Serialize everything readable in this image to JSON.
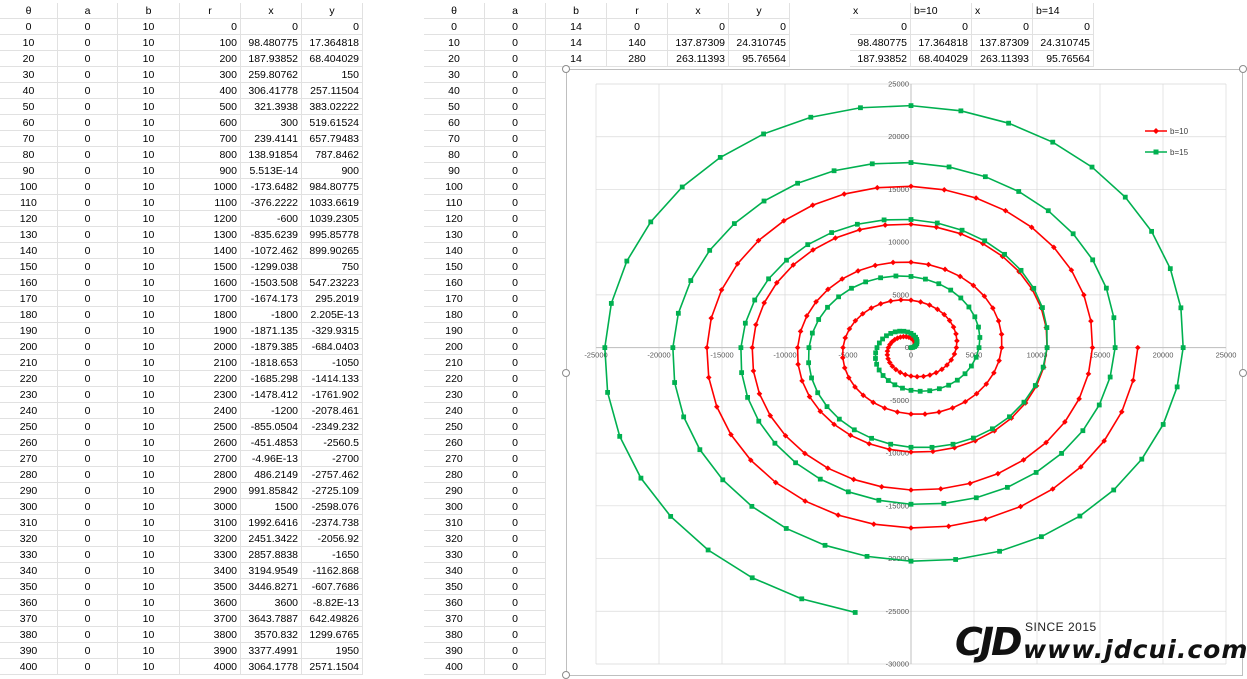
{
  "table1": {
    "headers": [
      "θ",
      "a",
      "b",
      "r",
      "x",
      "y"
    ],
    "rows": [
      [
        "0",
        "0",
        "10",
        "0",
        "0",
        "0"
      ],
      [
        "10",
        "0",
        "10",
        "100",
        "98.480775",
        "17.364818"
      ],
      [
        "20",
        "0",
        "10",
        "200",
        "187.93852",
        "68.404029"
      ],
      [
        "30",
        "0",
        "10",
        "300",
        "259.80762",
        "150"
      ],
      [
        "40",
        "0",
        "10",
        "400",
        "306.41778",
        "257.11504"
      ],
      [
        "50",
        "0",
        "10",
        "500",
        "321.3938",
        "383.02222"
      ],
      [
        "60",
        "0",
        "10",
        "600",
        "300",
        "519.61524"
      ],
      [
        "70",
        "0",
        "10",
        "700",
        "239.4141",
        "657.79483"
      ],
      [
        "80",
        "0",
        "10",
        "800",
        "138.91854",
        "787.8462"
      ],
      [
        "90",
        "0",
        "10",
        "900",
        "5.513E-14",
        "900"
      ],
      [
        "100",
        "0",
        "10",
        "1000",
        "-173.6482",
        "984.80775"
      ],
      [
        "110",
        "0",
        "10",
        "1100",
        "-376.2222",
        "1033.6619"
      ],
      [
        "120",
        "0",
        "10",
        "1200",
        "-600",
        "1039.2305"
      ],
      [
        "130",
        "0",
        "10",
        "1300",
        "-835.6239",
        "995.85778"
      ],
      [
        "140",
        "0",
        "10",
        "1400",
        "-1072.462",
        "899.90265"
      ],
      [
        "150",
        "0",
        "10",
        "1500",
        "-1299.038",
        "750"
      ],
      [
        "160",
        "0",
        "10",
        "1600",
        "-1503.508",
        "547.23223"
      ],
      [
        "170",
        "0",
        "10",
        "1700",
        "-1674.173",
        "295.2019"
      ],
      [
        "180",
        "0",
        "10",
        "1800",
        "-1800",
        "2.205E-13"
      ],
      [
        "190",
        "0",
        "10",
        "1900",
        "-1871.135",
        "-329.9315"
      ],
      [
        "200",
        "0",
        "10",
        "2000",
        "-1879.385",
        "-684.0403"
      ],
      [
        "210",
        "0",
        "10",
        "2100",
        "-1818.653",
        "-1050"
      ],
      [
        "220",
        "0",
        "10",
        "2200",
        "-1685.298",
        "-1414.133"
      ],
      [
        "230",
        "0",
        "10",
        "2300",
        "-1478.412",
        "-1761.902"
      ],
      [
        "240",
        "0",
        "10",
        "2400",
        "-1200",
        "-2078.461"
      ],
      [
        "250",
        "0",
        "10",
        "2500",
        "-855.0504",
        "-2349.232"
      ],
      [
        "260",
        "0",
        "10",
        "2600",
        "-451.4853",
        "-2560.5"
      ],
      [
        "270",
        "0",
        "10",
        "2700",
        "-4.96E-13",
        "-2700"
      ],
      [
        "280",
        "0",
        "10",
        "2800",
        "486.2149",
        "-2757.462"
      ],
      [
        "290",
        "0",
        "10",
        "2900",
        "991.85842",
        "-2725.109"
      ],
      [
        "300",
        "0",
        "10",
        "3000",
        "1500",
        "-2598.076"
      ],
      [
        "310",
        "0",
        "10",
        "3100",
        "1992.6416",
        "-2374.738"
      ],
      [
        "320",
        "0",
        "10",
        "3200",
        "2451.3422",
        "-2056.92"
      ],
      [
        "330",
        "0",
        "10",
        "3300",
        "2857.8838",
        "-1650"
      ],
      [
        "340",
        "0",
        "10",
        "3400",
        "3194.9549",
        "-1162.868"
      ],
      [
        "350",
        "0",
        "10",
        "3500",
        "3446.8271",
        "-607.7686"
      ],
      [
        "360",
        "0",
        "10",
        "3600",
        "3600",
        "-8.82E-13"
      ],
      [
        "370",
        "0",
        "10",
        "3700",
        "3643.7887",
        "642.49826"
      ],
      [
        "380",
        "0",
        "10",
        "3800",
        "3570.832",
        "1299.6765"
      ],
      [
        "390",
        "0",
        "10",
        "3900",
        "3377.4991",
        "1950"
      ],
      [
        "400",
        "0",
        "10",
        "4000",
        "3064.1778",
        "2571.1504"
      ]
    ]
  },
  "table2": {
    "headers": [
      "θ",
      "a",
      "b",
      "r",
      "x",
      "y"
    ],
    "col_b_values": [
      "14",
      "14",
      "14"
    ],
    "rows": [
      [
        "0",
        "0"
      ],
      [
        "10",
        "0"
      ],
      [
        "20",
        "0"
      ],
      [
        "30",
        "0"
      ],
      [
        "40",
        "0"
      ],
      [
        "50",
        "0"
      ],
      [
        "60",
        "0"
      ],
      [
        "70",
        "0"
      ],
      [
        "80",
        "0"
      ],
      [
        "90",
        "0"
      ],
      [
        "100",
        "0"
      ],
      [
        "110",
        "0"
      ],
      [
        "120",
        "0"
      ],
      [
        "130",
        "0"
      ],
      [
        "140",
        "0"
      ],
      [
        "150",
        "0"
      ],
      [
        "160",
        "0"
      ],
      [
        "170",
        "0"
      ],
      [
        "180",
        "0"
      ],
      [
        "190",
        "0"
      ],
      [
        "200",
        "0"
      ],
      [
        "210",
        "0"
      ],
      [
        "220",
        "0"
      ],
      [
        "230",
        "0"
      ],
      [
        "240",
        "0"
      ],
      [
        "250",
        "0"
      ],
      [
        "260",
        "0"
      ],
      [
        "270",
        "0"
      ],
      [
        "280",
        "0"
      ],
      [
        "290",
        "0"
      ],
      [
        "300",
        "0"
      ],
      [
        "310",
        "0"
      ],
      [
        "320",
        "0"
      ],
      [
        "330",
        "0"
      ],
      [
        "340",
        "0"
      ],
      [
        "350",
        "0"
      ],
      [
        "360",
        "0"
      ],
      [
        "370",
        "0"
      ],
      [
        "380",
        "0"
      ],
      [
        "390",
        "0"
      ],
      [
        "400",
        "0"
      ]
    ],
    "top_rows_rxy": [
      [
        "0",
        "0",
        "0"
      ],
      [
        "140",
        "137.87309",
        "24.310745"
      ],
      [
        "280",
        "263.11393",
        "95.76564"
      ]
    ]
  },
  "table3": {
    "headers": [
      "x",
      "b=10",
      "x",
      "b=14"
    ],
    "rows": [
      [
        "0",
        "0",
        "0",
        "0"
      ],
      [
        "98.480775",
        "17.364818",
        "137.87309",
        "24.310745"
      ],
      [
        "187.93852",
        "68.404029",
        "263.11393",
        "95.76564"
      ]
    ]
  },
  "chart_data": {
    "type": "scatter",
    "subtype": "scatter-with-lines-and-markers",
    "series": [
      {
        "name": "b=10",
        "color": "#ff0000",
        "marker": "diamond",
        "b": 10,
        "theta_deg_range": [
          0,
          1800
        ]
      },
      {
        "name": "b=15",
        "color": "#00b050",
        "marker": "square",
        "b": 15,
        "theta_deg_range": [
          0,
          1700
        ]
      }
    ],
    "xlim": [
      -25000,
      25000
    ],
    "ylim": [
      -30000,
      25000
    ],
    "x_ticks": [
      "-25000",
      "-20000",
      "-15000",
      "-10000",
      "-5000",
      "0",
      "5000",
      "10000",
      "15000",
      "20000",
      "25000"
    ],
    "y_ticks": [
      "25000",
      "20000",
      "15000",
      "10000",
      "5000",
      "0",
      "-5000",
      "-10000",
      "-15000",
      "-20000",
      "-25000",
      "-30000"
    ],
    "grid": true,
    "legend_position": "top-right",
    "title": "",
    "xlabel": "",
    "ylabel": ""
  },
  "watermark": {
    "logo": "CJD",
    "since": "SINCE 2015",
    "url": "www.jdcui.com"
  }
}
